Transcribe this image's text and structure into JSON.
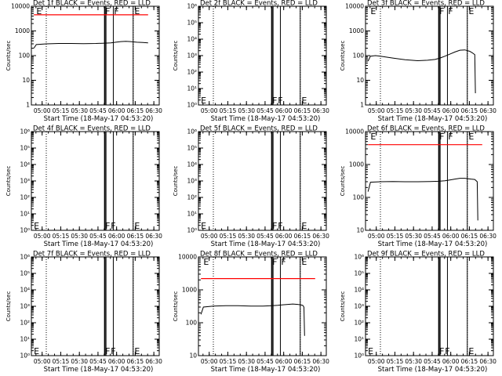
{
  "window": {
    "background": "#ffffff"
  },
  "colors": {
    "events": "#000000",
    "lld": "#ff0000",
    "axes": "#000000"
  },
  "chart_data": [
    {
      "type": "line",
      "title": "Det 1f BLACK = Events, RED = LLD",
      "xlabel": "Start Time (18-May-17 04:53:20)",
      "ylabel": "Counts/sec",
      "log_scale_y": true,
      "ylim": [
        1,
        10000
      ],
      "yticks": [
        "1",
        "10",
        "100",
        "1000",
        "10000"
      ],
      "xticks": [
        "05:00",
        "05:15",
        "05:30",
        "05:45",
        "06:00",
        "06:15",
        "06:30"
      ],
      "x_range_min": [
        -2,
        101
      ],
      "dotted_lines_min": [
        10,
        80
      ],
      "flag_lines_min": [
        57,
        58,
        64,
        80
      ],
      "flags": [
        {
          "text": "E",
          "x": 2,
          "y": 10000
        },
        {
          "text": "F",
          "x": 57.5,
          "y": 10000
        },
        {
          "text": "F",
          "x": 64.5,
          "y": 10000
        },
        {
          "text": "E",
          "x": 81,
          "y": 10000
        }
      ],
      "series": [
        {
          "role": "events",
          "x": [
            0,
            2,
            10,
            20,
            30,
            40,
            50,
            57,
            62,
            66,
            70,
            74,
            78,
            83,
            88,
            92
          ],
          "values": [
            200,
            280,
            300,
            310,
            310,
            305,
            310,
            320,
            330,
            350,
            370,
            380,
            370,
            350,
            340,
            330
          ]
        },
        {
          "role": "lld",
          "x": [
            0,
            92
          ],
          "values": [
            4500,
            4500
          ]
        }
      ]
    },
    {
      "type": "line",
      "title": "Det 2f BLACK = Events, RED = LLD",
      "xlabel": "Start Time (18-May-17 04:53:20)",
      "ylabel": "Counts/sec",
      "log_scale_y": true,
      "ylim": [
        1,
        1000000
      ],
      "yticks": [
        "10⁰",
        "10¹",
        "10²",
        "10³",
        "10⁴",
        "10⁵",
        "10⁶"
      ],
      "xticks": [
        "05:00",
        "05:15",
        "05:30",
        "05:45",
        "06:00",
        "06:15",
        "06:30"
      ],
      "x_range_min": [
        -2,
        101
      ],
      "dotted_lines_min": [
        10,
        80
      ],
      "flag_lines_min": [
        57,
        58,
        64,
        80
      ],
      "flags": [
        {
          "text": "E",
          "x": 0,
          "y": 1.5
        },
        {
          "text": "F",
          "x": 57.5,
          "y": 1.5
        },
        {
          "text": "F",
          "x": 62,
          "y": 1.5
        },
        {
          "text": "E",
          "x": 81,
          "y": 1.5
        }
      ],
      "series": []
    },
    {
      "type": "line",
      "title": "Det 3f BLACK = Events, RED = LLD",
      "xlabel": "Start Time (18-May-17 04:53:20)",
      "ylabel": "Counts/sec",
      "log_scale_y": true,
      "ylim": [
        1,
        10000
      ],
      "yticks": [
        "1",
        "10",
        "100",
        "1000",
        "10000"
      ],
      "xticks": [
        "05:00",
        "05:15",
        "05:30",
        "05:45",
        "06:00",
        "06:15",
        "06:30"
      ],
      "x_range_min": [
        -2,
        101
      ],
      "dotted_lines_min": [
        10,
        80
      ],
      "flag_lines_min": [
        57,
        58,
        64,
        80
      ],
      "flags": [
        {
          "text": "E",
          "x": 2,
          "y": 10000
        },
        {
          "text": "F",
          "x": 57.5,
          "y": 10000
        },
        {
          "text": "F",
          "x": 64.5,
          "y": 10000
        },
        {
          "text": "E",
          "x": 81,
          "y": 10000
        }
      ],
      "series": [
        {
          "role": "events",
          "x": [
            0,
            2,
            6,
            10,
            20,
            30,
            40,
            48,
            54,
            58,
            62,
            66,
            70,
            74,
            78,
            82,
            84,
            86,
            86.5
          ],
          "values": [
            60,
            95,
            100,
            95,
            80,
            68,
            62,
            65,
            70,
            80,
            95,
            115,
            140,
            165,
            170,
            150,
            130,
            110,
            3
          ]
        },
        {
          "role": "lld",
          "x": [],
          "values": []
        }
      ]
    },
    {
      "type": "line",
      "title": "Det 4f BLACK = Events, RED = LLD",
      "xlabel": "Start Time (18-May-17 04:53:20)",
      "ylabel": "Counts/sec",
      "log_scale_y": true,
      "ylim": [
        1,
        1000000
      ],
      "yticks": [
        "10⁰",
        "10¹",
        "10²",
        "10³",
        "10⁴",
        "10⁵",
        "10⁶"
      ],
      "xticks": [
        "05:00",
        "05:15",
        "05:30",
        "05:45",
        "06:00",
        "06:15",
        "06:30"
      ],
      "x_range_min": [
        -2,
        101
      ],
      "dotted_lines_min": [
        10,
        80
      ],
      "flag_lines_min": [
        57,
        58,
        64,
        80
      ],
      "flags": [
        {
          "text": "E",
          "x": 0,
          "y": 1.5
        },
        {
          "text": "F",
          "x": 57.5,
          "y": 1.5
        },
        {
          "text": "F",
          "x": 62,
          "y": 1.5
        },
        {
          "text": "E",
          "x": 81,
          "y": 1.5
        }
      ],
      "series": []
    },
    {
      "type": "line",
      "title": "Det 5f BLACK = Events, RED = LLD",
      "xlabel": "Start Time (18-May-17 04:53:20)",
      "ylabel": "Counts/sec",
      "log_scale_y": true,
      "ylim": [
        1,
        1000000
      ],
      "yticks": [
        "10⁰",
        "10¹",
        "10²",
        "10³",
        "10⁴",
        "10⁵",
        "10⁶"
      ],
      "xticks": [
        "05:00",
        "05:15",
        "05:30",
        "05:45",
        "06:00",
        "06:15",
        "06:30"
      ],
      "x_range_min": [
        -2,
        101
      ],
      "dotted_lines_min": [
        10,
        80
      ],
      "flag_lines_min": [
        57,
        58,
        64,
        80
      ],
      "flags": [
        {
          "text": "E",
          "x": 0,
          "y": 1.5
        },
        {
          "text": "F",
          "x": 57.5,
          "y": 1.5
        },
        {
          "text": "F",
          "x": 62,
          "y": 1.5
        },
        {
          "text": "E",
          "x": 81,
          "y": 1.5
        }
      ],
      "series": []
    },
    {
      "type": "line",
      "title": "Det 6f BLACK = Events, RED = LLD",
      "xlabel": "Start Time (18-May-17 04:53:20)",
      "ylabel": "Counts/sec",
      "log_scale_y": true,
      "ylim": [
        10,
        10000
      ],
      "yticks": [
        "10",
        "100",
        "1000",
        "10000"
      ],
      "xticks": [
        "05:00",
        "05:15",
        "05:30",
        "05:45",
        "06:00",
        "06:15",
        "06:30"
      ],
      "x_range_min": [
        -2,
        101
      ],
      "dotted_lines_min": [
        10,
        80
      ],
      "flag_lines_min": [
        57,
        58,
        64,
        80
      ],
      "flags": [
        {
          "text": "E",
          "x": 2,
          "y": 10000
        },
        {
          "text": "F",
          "x": 57.5,
          "y": 10000
        },
        {
          "text": "F",
          "x": 64.5,
          "y": 10000
        },
        {
          "text": "E",
          "x": 81,
          "y": 10000
        }
      ],
      "series": [
        {
          "role": "events",
          "x": [
            0,
            2,
            10,
            20,
            30,
            40,
            50,
            57,
            62,
            66,
            70,
            74,
            78,
            83,
            86,
            88,
            88.5
          ],
          "values": [
            150,
            290,
            300,
            305,
            300,
            300,
            305,
            310,
            320,
            340,
            360,
            380,
            380,
            360,
            350,
            300,
            20
          ]
        },
        {
          "role": "lld",
          "x": [
            0,
            92
          ],
          "values": [
            4000,
            4000
          ]
        }
      ]
    },
    {
      "type": "line",
      "title": "Det 7f BLACK = Events, RED = LLD",
      "xlabel": "Start Time (18-May-17 04:53:20)",
      "ylabel": "Counts/sec",
      "log_scale_y": true,
      "ylim": [
        1,
        1000000
      ],
      "yticks": [
        "10⁰",
        "10¹",
        "10²",
        "10³",
        "10⁴",
        "10⁵",
        "10⁶"
      ],
      "xticks": [
        "05:00",
        "05:15",
        "05:30",
        "05:45",
        "06:00",
        "06:15",
        "06:30"
      ],
      "x_range_min": [
        -2,
        101
      ],
      "dotted_lines_min": [
        10,
        80
      ],
      "flag_lines_min": [
        57,
        58,
        64,
        80
      ],
      "flags": [
        {
          "text": "E",
          "x": 0,
          "y": 1.5
        },
        {
          "text": "F",
          "x": 57.5,
          "y": 1.5
        },
        {
          "text": "F",
          "x": 62,
          "y": 1.5
        },
        {
          "text": "E",
          "x": 81,
          "y": 1.5
        }
      ],
      "series": []
    },
    {
      "type": "line",
      "title": "Det 8f BLACK = Events, RED = LLD",
      "xlabel": "Start Time (18-May-17 04:53:20)",
      "ylabel": "Counts/sec",
      "log_scale_y": true,
      "ylim": [
        10,
        10000
      ],
      "yticks": [
        "10",
        "100",
        "1000",
        "10000"
      ],
      "xticks": [
        "05:00",
        "05:15",
        "05:30",
        "05:45",
        "06:00",
        "06:15",
        "06:30"
      ],
      "x_range_min": [
        -2,
        101
      ],
      "dotted_lines_min": [
        10,
        80
      ],
      "flag_lines_min": [
        57,
        58,
        64,
        80
      ],
      "flags": [
        {
          "text": "E",
          "x": 2,
          "y": 10000
        },
        {
          "text": "F",
          "x": 57.5,
          "y": 10000
        },
        {
          "text": "F",
          "x": 64.5,
          "y": 10000
        },
        {
          "text": "E",
          "x": 81,
          "y": 10000
        }
      ],
      "series": [
        {
          "role": "events",
          "x": [
            0,
            2,
            10,
            20,
            30,
            40,
            50,
            57,
            62,
            66,
            70,
            74,
            78,
            82,
            83,
            83.5
          ],
          "values": [
            180,
            300,
            320,
            330,
            330,
            320,
            320,
            330,
            340,
            350,
            360,
            370,
            360,
            340,
            300,
            40
          ]
        },
        {
          "role": "lld",
          "x": [
            0,
            92
          ],
          "values": [
            2200,
            2200
          ]
        }
      ]
    },
    {
      "type": "line",
      "title": "Det 9f BLACK = Events, RED = LLD",
      "xlabel": "Start Time (18-May-17 04:53:20)",
      "ylabel": "Counts/sec",
      "log_scale_y": true,
      "ylim": [
        1,
        1000000
      ],
      "yticks": [
        "10⁰",
        "10¹",
        "10²",
        "10³",
        "10⁴",
        "10⁵",
        "10⁶"
      ],
      "xticks": [
        "05:00",
        "05:15",
        "05:30",
        "05:45",
        "06:00",
        "06:15",
        "06:30"
      ],
      "x_range_min": [
        -2,
        101
      ],
      "dotted_lines_min": [
        10,
        80
      ],
      "flag_lines_min": [
        57,
        58,
        64,
        80
      ],
      "flags": [
        {
          "text": "E",
          "x": 0,
          "y": 1.5
        },
        {
          "text": "F",
          "x": 57.5,
          "y": 1.5
        },
        {
          "text": "F",
          "x": 62,
          "y": 1.5
        },
        {
          "text": "E",
          "x": 81,
          "y": 1.5
        }
      ],
      "series": []
    }
  ]
}
